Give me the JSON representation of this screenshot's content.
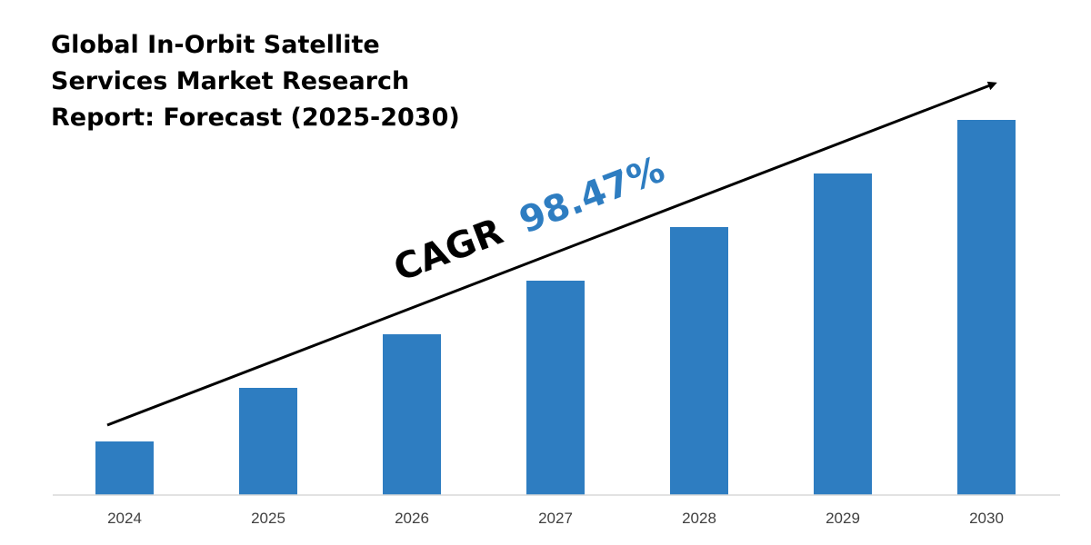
{
  "chart_data": {
    "type": "bar",
    "title_lines": [
      "Global In-Orbit Satellite",
      "Services Market Research",
      "Report: Forecast (2025-2030)"
    ],
    "categories": [
      "2024",
      "2025",
      "2026",
      "2027",
      "2028",
      "2029",
      "2030"
    ],
    "values": [
      1,
      2,
      3,
      4,
      5,
      6,
      7
    ],
    "ylim": [
      0,
      7
    ],
    "xlabel": "",
    "ylabel": "",
    "grid": false,
    "legend": "none",
    "annotation": {
      "label": "CAGR",
      "value": "98.47%"
    },
    "colors": {
      "bar": "#2E7DC1",
      "arrow": "#000000",
      "axis": "#D9D9D9",
      "cagr_value": "#2E7DC1"
    }
  }
}
